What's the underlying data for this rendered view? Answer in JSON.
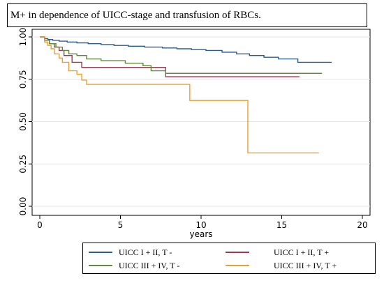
{
  "chart_data": {
    "type": "line",
    "title": "M+ in dependence of UICC-stage and transfusion of RBCs.",
    "xlabel": "years",
    "ylabel": "",
    "xlim": [
      0,
      20
    ],
    "ylim": [
      0,
      1
    ],
    "x_ticks": [
      "0",
      "5",
      "10",
      "15",
      "20"
    ],
    "y_ticks": [
      "0.00",
      "0.25",
      "0.50",
      "0.75",
      "1.00"
    ],
    "grid": "horizontal",
    "step": true,
    "legend_position": "bottom",
    "series": [
      {
        "name": "UICC I + II, T -",
        "color": "#2e5c8a",
        "x": [
          0,
          0.3,
          0.5,
          0.8,
          1.2,
          1.7,
          2.3,
          3.0,
          3.8,
          4.6,
          5.5,
          6.5,
          7.6,
          8.5,
          9.4,
          10.3,
          11.3,
          12.2,
          13.0,
          13.9,
          14.8,
          16.0,
          18.1
        ],
        "y": [
          1.0,
          0.99,
          0.985,
          0.98,
          0.975,
          0.97,
          0.965,
          0.96,
          0.955,
          0.95,
          0.945,
          0.94,
          0.935,
          0.93,
          0.925,
          0.92,
          0.91,
          0.9,
          0.89,
          0.88,
          0.87,
          0.85,
          0.85
        ]
      },
      {
        "name": "UICC I + II, T +",
        "color": "#9c3a52",
        "x": [
          0,
          0.3,
          0.6,
          0.9,
          1.2,
          1.5,
          2.0,
          2.6,
          7.8,
          16.1
        ],
        "y": [
          1.0,
          0.98,
          0.96,
          0.94,
          0.92,
          0.89,
          0.85,
          0.82,
          0.765,
          0.765
        ]
      },
      {
        "name": "UICC III + IV, T -",
        "color": "#5f8a3c",
        "x": [
          0,
          0.3,
          0.6,
          1.0,
          1.4,
          1.8,
          2.3,
          2.9,
          3.8,
          5.3,
          6.4,
          6.9,
          7.8,
          17.5
        ],
        "y": [
          1.0,
          0.98,
          0.96,
          0.94,
          0.92,
          0.9,
          0.89,
          0.87,
          0.86,
          0.845,
          0.83,
          0.8,
          0.785,
          0.785
        ]
      },
      {
        "name": "UICC III + IV, T +",
        "color": "#e8a030",
        "x": [
          0,
          0.3,
          0.5,
          0.7,
          0.9,
          1.2,
          1.4,
          1.8,
          2.3,
          2.6,
          2.9,
          9.3,
          12.9,
          17.3
        ],
        "y": [
          1.0,
          0.97,
          0.95,
          0.93,
          0.9,
          0.875,
          0.85,
          0.8,
          0.78,
          0.745,
          0.72,
          0.625,
          0.315,
          0.315
        ]
      }
    ]
  }
}
